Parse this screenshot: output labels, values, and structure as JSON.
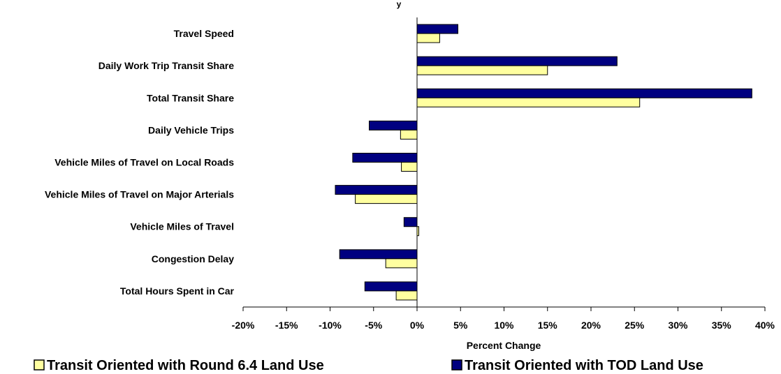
{
  "chart_data": {
    "type": "bar",
    "orientation": "horizontal",
    "title": "",
    "top_mark": "y",
    "xlabel": "Percent Change",
    "ylabel": "",
    "xlim": [
      -20,
      40
    ],
    "x_ticks": [
      -20,
      -15,
      -10,
      -5,
      0,
      5,
      10,
      15,
      20,
      25,
      30,
      35,
      40
    ],
    "x_tick_labels": [
      "-20%",
      "-15%",
      "-10%",
      "-5%",
      "0%",
      "5%",
      "10%",
      "15%",
      "20%",
      "25%",
      "30%",
      "35%",
      "40%"
    ],
    "grid": false,
    "legend_position": "bottom",
    "categories": [
      "Travel Speed",
      "Daily Work Trip Transit Share",
      "Total Transit Share",
      "Daily Vehicle Trips",
      "Vehicle Miles of Travel on Local Roads",
      "Vehicle Miles of Travel on Major Arterials",
      "Vehicle Miles of Travel",
      "Congestion Delay",
      "Total Hours Spent in Car"
    ],
    "series": [
      {
        "name": "Transit Oriented with Round 6.4 Land Use",
        "color": "#ffffa0",
        "values": [
          2.6,
          15.0,
          25.6,
          -1.9,
          -1.8,
          -7.1,
          0.2,
          -3.6,
          -2.4
        ]
      },
      {
        "name": "Transit Oriented with TOD Land Use",
        "color": "#000080",
        "values": [
          4.7,
          23.0,
          38.5,
          -5.5,
          -7.4,
          -9.4,
          -1.5,
          -8.9,
          -6.0
        ]
      }
    ]
  }
}
